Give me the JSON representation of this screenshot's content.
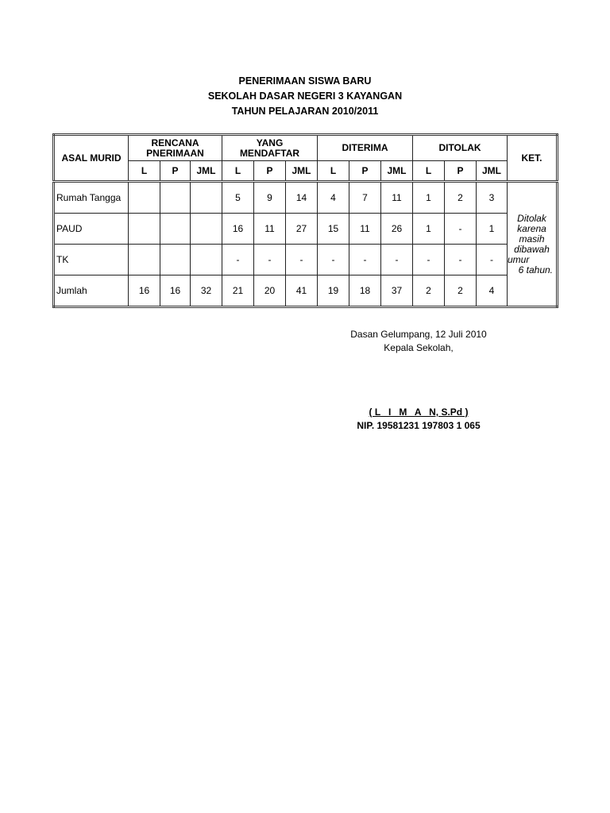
{
  "header": {
    "line1": "PENERIMAAN SISWA BARU",
    "line2": "SEKOLAH DASAR NEGERI 3 KAYANGAN",
    "line3": "TAHUN PELAJARAN 2010/2011"
  },
  "table": {
    "col_asal": "ASAL MURID",
    "groups": [
      {
        "line1": "RENCANA",
        "line2": "PNERIMAAN"
      },
      {
        "line1": "YANG",
        "line2": "MENDAFTAR"
      },
      {
        "line1": "DITERIMA",
        "line2": ""
      },
      {
        "line1": "DITOLAK",
        "line2": ""
      }
    ],
    "col_ket": "KET.",
    "subcols": [
      "L",
      "P",
      "JML"
    ],
    "rows": [
      {
        "label": "Rumah Tangga",
        "values": [
          "",
          "",
          "",
          "5",
          "9",
          "14",
          "4",
          "7",
          "11",
          "1",
          "2",
          "3"
        ]
      },
      {
        "label": "PAUD",
        "values": [
          "",
          "",
          "",
          "16",
          "11",
          "27",
          "15",
          "11",
          "26",
          "1",
          "-",
          "1"
        ]
      },
      {
        "label": "TK",
        "values": [
          "",
          "",
          "",
          "-",
          "-",
          "-",
          "-",
          "-",
          "-",
          "-",
          "-",
          "-"
        ]
      },
      {
        "label": "Jumlah",
        "values": [
          "16",
          "16",
          "32",
          "21",
          "20",
          "41",
          "19",
          "18",
          "37",
          "2",
          "2",
          "4"
        ]
      }
    ],
    "ket_text": [
      "Ditolak",
      "karena",
      "masih",
      "dibawah",
      "umur",
      "6 tahun."
    ]
  },
  "signature": {
    "place_date": "Dasan Gelumpang, 12 Juli 2010",
    "position": "Kepala Sekolah,",
    "name": "( L   I   M   A   N, S.Pd )",
    "nip": "NIP. 19581231 197803 1 065"
  }
}
